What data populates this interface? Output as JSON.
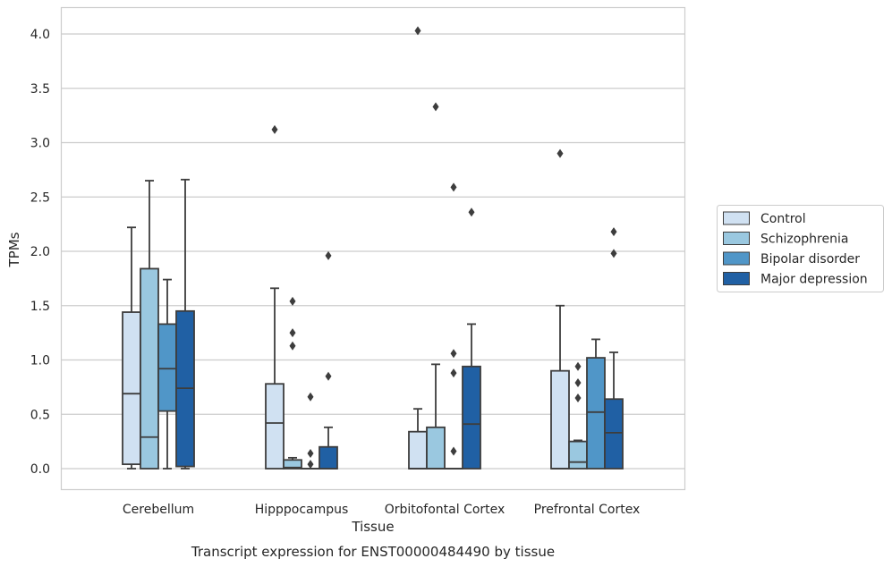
{
  "caption": "Transcript expression for ENST00000484490 by tissue",
  "chart_data": {
    "type": "box",
    "xlabel": "Tissue",
    "ylabel": "TPMs",
    "ylim": [
      -0.2,
      4.23
    ],
    "yticks": [
      0.0,
      0.5,
      1.0,
      1.5,
      2.0,
      2.5,
      3.0,
      3.5,
      4.0
    ],
    "ytick_labels": [
      "0.0",
      "0.5",
      "1.0",
      "1.5",
      "2.0",
      "2.5",
      "3.0",
      "3.5",
      "4.0"
    ],
    "grid": "horizontal",
    "legend_position": "right",
    "categories": [
      "Cerebellum",
      "Hipppocampus",
      "Orbitofontal Cortex",
      "Prefrontal Cortex"
    ],
    "series": [
      {
        "name": "Control",
        "color": "#d0e1f2",
        "boxes": [
          {
            "whisker_low": 0.0,
            "q1": 0.04,
            "median": 0.69,
            "q3": 1.44,
            "whisker_high": 2.22,
            "outliers": []
          },
          {
            "whisker_low": 0.0,
            "q1": 0.0,
            "median": 0.42,
            "q3": 0.78,
            "whisker_high": 1.66,
            "outliers": [
              3.12
            ]
          },
          {
            "whisker_low": 0.0,
            "q1": 0.0,
            "median": 0.0,
            "q3": 0.34,
            "whisker_high": 0.55,
            "outliers": [
              4.03
            ]
          },
          {
            "whisker_low": 0.0,
            "q1": 0.0,
            "median": 0.0,
            "q3": 0.9,
            "whisker_high": 1.5,
            "outliers": [
              2.9
            ]
          }
        ]
      },
      {
        "name": "Schizophrenia",
        "color": "#9ac8e0",
        "boxes": [
          {
            "whisker_low": 0.0,
            "q1": 0.0,
            "median": 0.29,
            "q3": 1.84,
            "whisker_high": 2.65,
            "outliers": []
          },
          {
            "whisker_low": 0.0,
            "q1": 0.0,
            "median": 0.01,
            "q3": 0.08,
            "whisker_high": 0.1,
            "outliers": [
              1.54,
              1.25,
              1.13
            ]
          },
          {
            "whisker_low": 0.0,
            "q1": 0.0,
            "median": 0.0,
            "q3": 0.38,
            "whisker_high": 0.96,
            "outliers": [
              3.33
            ]
          },
          {
            "whisker_low": 0.0,
            "q1": 0.0,
            "median": 0.06,
            "q3": 0.25,
            "whisker_high": 0.26,
            "outliers": [
              0.94,
              0.79,
              0.65
            ]
          }
        ]
      },
      {
        "name": "Bipolar disorder",
        "color": "#5096c8",
        "boxes": [
          {
            "whisker_low": 0.0,
            "q1": 0.53,
            "median": 0.92,
            "q3": 1.33,
            "whisker_high": 1.74,
            "outliers": []
          },
          {
            "whisker_low": 0.0,
            "q1": 0.0,
            "median": 0.0,
            "q3": 0.0,
            "whisker_high": 0.0,
            "outliers": [
              0.66,
              0.14,
              0.04
            ]
          },
          {
            "whisker_low": 0.0,
            "q1": 0.0,
            "median": 0.0,
            "q3": 0.0,
            "whisker_high": 0.0,
            "outliers": [
              2.59,
              1.06,
              0.88,
              0.16
            ]
          },
          {
            "whisker_low": 0.0,
            "q1": 0.0,
            "median": 0.52,
            "q3": 1.02,
            "whisker_high": 1.19,
            "outliers": []
          }
        ]
      },
      {
        "name": "Major depression",
        "color": "#2060a4",
        "boxes": [
          {
            "whisker_low": 0.0,
            "q1": 0.02,
            "median": 0.74,
            "q3": 1.45,
            "whisker_high": 2.66,
            "outliers": []
          },
          {
            "whisker_low": 0.0,
            "q1": 0.0,
            "median": 0.0,
            "q3": 0.2,
            "whisker_high": 0.38,
            "outliers": [
              1.96,
              0.85
            ]
          },
          {
            "whisker_low": 0.0,
            "q1": 0.0,
            "median": 0.41,
            "q3": 0.94,
            "whisker_high": 1.33,
            "outliers": [
              2.36
            ]
          },
          {
            "whisker_low": 0.0,
            "q1": 0.0,
            "median": 0.33,
            "q3": 0.64,
            "whisker_high": 1.07,
            "outliers": [
              2.18,
              1.98
            ]
          }
        ]
      }
    ]
  }
}
